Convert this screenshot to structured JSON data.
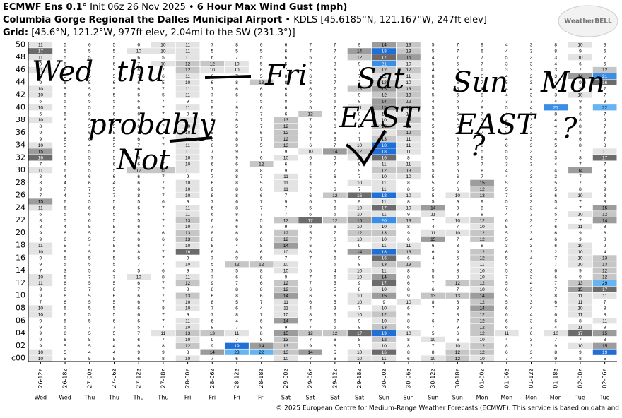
{
  "header": {
    "title": [
      "ECMWF Ens 0.1°",
      "Init 06z 26 Nov 2025 •",
      "6 Hour Max Wind Gust (mph)"
    ],
    "location": [
      "Columbia Gorge Regional the Dalles Municipal Airport",
      "• KDLS [45.6185°N, 121.167°W, 247ft elev]"
    ],
    "grid": [
      "Grid:",
      "[45.6°N, 121.2°W, 977ft elev, 2.04mi to the SW (231.3°)]"
    ],
    "logo": "WeatherBELL"
  },
  "footer": "© 2025 European Centre for Medium-Range Weather Forecasts (ECMWF). This service is based on data and",
  "chart_data": {
    "type": "heatmap",
    "x": [
      "26-12z",
      "26-18z",
      "27-00z",
      "27-06z",
      "27-12z",
      "27-18z",
      "28-00z",
      "28-06z",
      "28-12z",
      "28-18z",
      "29-00z",
      "29-06z",
      "29-12z",
      "29-18z",
      "30-00z",
      "30-06z",
      "30-12z",
      "30-18z",
      "01-00z",
      "01-06z",
      "01-12z",
      "01-18z",
      "02-00z",
      "02-06z"
    ],
    "day_labels": [
      "Wed",
      "Wed",
      "Thu",
      "Thu",
      "Thu",
      "Thu",
      "Fri",
      "Fri",
      "Fri",
      "Fri",
      "Sat",
      "Sat",
      "Sat",
      "Sat",
      "Sun",
      "Sun",
      "Sun",
      "Sun",
      "Mon",
      "Mon",
      "Mon",
      "Mon",
      "Tue",
      "Tue"
    ],
    "y": [
      "50",
      null,
      "48",
      null,
      "46",
      null,
      "44",
      null,
      "42",
      null,
      "40",
      null,
      "38",
      null,
      "36",
      null,
      "34",
      null,
      "32",
      null,
      "30",
      null,
      "28",
      null,
      "26",
      null,
      "24",
      null,
      "22",
      null,
      "20",
      null,
      "18",
      null,
      "16",
      null,
      "14",
      null,
      "12",
      null,
      "10",
      null,
      "08",
      null,
      "06",
      null,
      "04",
      null,
      "02",
      null,
      "c00"
    ],
    "color_scale": [
      {
        "min": 10,
        "color": "#e3e3e3"
      },
      {
        "min": 12,
        "color": "#c6c6c6"
      },
      {
        "min": 14,
        "color": "#9c9c9c"
      },
      {
        "min": 16,
        "color": "#6b6b6b"
      },
      {
        "min": 18,
        "color": "#1f6fd6"
      },
      {
        "min": 20,
        "color": "#3a8ee6"
      },
      {
        "min": 22,
        "color": "#66b4f2"
      }
    ],
    "values": [
      [
        11,
        5,
        6,
        5,
        6,
        10,
        11,
        7,
        8,
        6,
        6,
        7,
        7,
        9,
        14,
        13,
        5,
        7,
        9,
        4,
        3,
        8,
        10,
        3
      ],
      [
        17,
        5,
        5,
        5,
        10,
        10,
        11,
        5,
        5,
        5,
        6,
        7,
        7,
        14,
        18,
        13,
        5,
        7,
        6,
        4,
        3,
        8,
        9,
        6
      ],
      [
        11,
        5,
        5,
        5,
        6,
        5,
        11,
        6,
        7,
        5,
        6,
        5,
        7,
        12,
        17,
        15,
        4,
        7,
        7,
        5,
        3,
        3,
        10,
        7
      ],
      [
        9,
        6,
        5,
        6,
        7,
        10,
        12,
        12,
        10,
        5,
        5,
        7,
        8,
        9,
        21,
        10,
        5,
        5,
        7,
        3,
        3,
        4,
        6,
        6
      ],
      [
        11,
        6,
        5,
        5,
        6,
        7,
        12,
        10,
        10,
        6,
        7,
        5,
        6,
        7,
        12,
        12,
        4,
        6,
        9,
        3,
        3,
        3,
        7,
        12
      ],
      [
        9,
        5,
        6,
        5,
        7,
        6,
        11,
        6,
        7,
        5,
        8,
        6,
        6,
        7,
        11,
        11,
        8,
        5,
        5,
        4,
        3,
        3,
        14,
        21
      ],
      [
        9,
        6,
        5,
        6,
        6,
        5,
        10,
        6,
        8,
        13,
        8,
        5,
        7,
        7,
        12,
        10,
        5,
        6,
        7,
        5,
        3,
        4,
        9,
        16
      ],
      [
        10,
        5,
        5,
        5,
        6,
        7,
        11,
        7,
        6,
        6,
        6,
        6,
        7,
        13,
        15,
        13,
        5,
        5,
        6,
        4,
        4,
        3,
        9,
        7
      ],
      [
        10,
        5,
        6,
        5,
        6,
        5,
        11,
        7,
        6,
        6,
        6,
        6,
        5,
        9,
        12,
        13,
        5,
        6,
        8,
        4,
        3,
        3,
        10,
        7
      ],
      [
        6,
        5,
        5,
        5,
        6,
        7,
        9,
        5,
        7,
        5,
        8,
        5,
        6,
        8,
        14,
        12,
        4,
        6,
        7,
        3,
        3,
        4,
        9,
        8
      ],
      [
        10,
        5,
        5,
        5,
        6,
        7,
        11,
        9,
        9,
        6,
        6,
        5,
        7,
        11,
        15,
        13,
        5,
        6,
        8,
        5,
        4,
        21,
        9,
        22
      ],
      [
        6,
        6,
        5,
        6,
        6,
        7,
        9,
        6,
        7,
        7,
        6,
        12,
        6,
        8,
        10,
        11,
        5,
        6,
        7,
        4,
        3,
        8,
        6,
        7
      ],
      [
        10,
        6,
        5,
        5,
        6,
        7,
        11,
        6,
        6,
        7,
        13,
        7,
        6,
        8,
        10,
        13,
        5,
        6,
        7,
        4,
        3,
        4,
        8,
        9
      ],
      [
        8,
        6,
        5,
        5,
        6,
        7,
        10,
        7,
        5,
        7,
        12,
        6,
        6,
        8,
        13,
        11,
        5,
        5,
        8,
        3,
        3,
        4,
        8,
        7
      ],
      [
        9,
        5,
        6,
        5,
        6,
        7,
        10,
        5,
        6,
        6,
        12,
        6,
        5,
        7,
        10,
        12,
        5,
        6,
        7,
        5,
        3,
        3,
        8,
        8
      ],
      [
        9,
        6,
        6,
        5,
        6,
        7,
        10,
        6,
        8,
        7,
        12,
        7,
        5,
        7,
        13,
        11,
        5,
        6,
        7,
        4,
        3,
        4,
        6,
        7
      ],
      [
        10,
        5,
        4,
        5,
        7,
        7,
        11,
        6,
        9,
        5,
        13,
        6,
        7,
        10,
        18,
        11,
        5,
        7,
        8,
        6,
        3,
        5,
        8,
        8
      ],
      [
        15,
        6,
        5,
        5,
        7,
        7,
        11,
        7,
        9,
        7,
        9,
        10,
        14,
        12,
        18,
        11,
        8,
        6,
        5,
        5,
        3,
        4,
        7,
        11
      ],
      [
        16,
        6,
        5,
        5,
        6,
        7,
        10,
        7,
        9,
        6,
        10,
        6,
        5,
        10,
        16,
        8,
        5,
        6,
        8,
        5,
        3,
        3,
        8,
        17
      ],
      [
        7,
        4,
        5,
        6,
        6,
        7,
        10,
        6,
        6,
        12,
        6,
        4,
        7,
        9,
        11,
        11,
        5,
        6,
        7,
        3,
        3,
        4,
        7,
        7
      ],
      [
        11,
        6,
        5,
        5,
        12,
        12,
        11,
        6,
        8,
        8,
        9,
        7,
        7,
        9,
        12,
        13,
        5,
        6,
        8,
        4,
        3,
        4,
        14,
        8
      ],
      [
        8,
        4,
        6,
        6,
        6,
        7,
        9,
        7,
        8,
        7,
        11,
        5,
        6,
        7,
        10,
        10,
        5,
        6,
        7,
        4,
        3,
        3,
        7,
        8
      ],
      [
        8,
        4,
        6,
        4,
        6,
        7,
        10,
        6,
        8,
        5,
        11,
        5,
        5,
        10,
        11,
        8,
        5,
        7,
        15,
        5,
        3,
        5,
        7,
        8
      ],
      [
        9,
        7,
        7,
        5,
        6,
        7,
        10,
        9,
        8,
        6,
        11,
        7,
        6,
        7,
        11,
        8,
        5,
        6,
        12,
        5,
        3,
        5,
        8,
        9
      ],
      [
        7,
        4,
        7,
        7,
        8,
        7,
        10,
        8,
        8,
        6,
        7,
        6,
        12,
        16,
        18,
        10,
        5,
        10,
        13,
        7,
        3,
        6,
        10,
        8
      ],
      [
        15,
        6,
        5,
        5,
        5,
        6,
        9,
        7,
        6,
        7,
        9,
        6,
        5,
        9,
        11,
        8,
        5,
        9,
        9,
        5,
        3,
        5,
        7,
        8
      ],
      [
        11,
        6,
        6,
        6,
        6,
        7,
        11,
        6,
        8,
        7,
        7,
        5,
        6,
        10,
        17,
        10,
        14,
        3,
        8,
        7,
        3,
        4,
        7,
        15
      ],
      [
        6,
        5,
        6,
        5,
        6,
        7,
        11,
        6,
        8,
        7,
        7,
        6,
        6,
        10,
        11,
        9,
        11,
        3,
        8,
        4,
        3,
        5,
        10,
        12
      ],
      [
        8,
        5,
        6,
        5,
        5,
        7,
        13,
        6,
        9,
        5,
        12,
        17,
        12,
        15,
        20,
        13,
        7,
        10,
        12,
        6,
        3,
        7,
        7,
        14
      ],
      [
        8,
        4,
        5,
        5,
        6,
        7,
        10,
        7,
        6,
        8,
        9,
        9,
        6,
        10,
        10,
        8,
        4,
        7,
        10,
        5,
        4,
        6,
        11,
        8
      ],
      [
        9,
        6,
        5,
        5,
        6,
        6,
        13,
        8,
        6,
        8,
        12,
        5,
        7,
        12,
        13,
        9,
        11,
        10,
        12,
        5,
        3,
        6,
        9,
        8
      ],
      [
        9,
        6,
        5,
        5,
        6,
        6,
        13,
        8,
        6,
        8,
        12,
        7,
        6,
        10,
        10,
        6,
        15,
        7,
        12,
        5,
        4,
        6,
        9,
        8
      ],
      [
        11,
        5,
        4,
        5,
        6,
        7,
        10,
        8,
        4,
        8,
        14,
        6,
        7,
        9,
        11,
        11,
        6,
        3,
        8,
        3,
        3,
        6,
        10,
        9
      ],
      [
        10,
        5,
        5,
        5,
        8,
        7,
        16,
        8,
        8,
        6,
        10,
        6,
        5,
        14,
        18,
        13,
        6,
        9,
        12,
        6,
        3,
        2,
        10,
        4
      ],
      [
        9,
        5,
        5,
        5,
        6,
        7,
        9,
        7,
        9,
        6,
        7,
        7,
        6,
        9,
        16,
        6,
        4,
        5,
        12,
        5,
        4,
        7,
        10,
        13
      ],
      [
        9,
        5,
        5,
        5,
        7,
        7,
        10,
        5,
        12,
        12,
        10,
        7,
        6,
        8,
        13,
        13,
        7,
        9,
        11,
        5,
        4,
        7,
        10,
        13
      ],
      [
        7,
        3,
        5,
        4,
        5,
        6,
        9,
        7,
        5,
        8,
        10,
        5,
        4,
        10,
        11,
        8,
        5,
        8,
        10,
        5,
        3,
        6,
        9,
        12
      ],
      [
        10,
        5,
        7,
        7,
        10,
        8,
        11,
        7,
        6,
        8,
        9,
        7,
        6,
        10,
        14,
        8,
        5,
        8,
        10,
        7,
        3,
        6,
        9,
        12
      ],
      [
        11,
        6,
        5,
        5,
        6,
        7,
        12,
        9,
        7,
        6,
        12,
        7,
        5,
        9,
        17,
        6,
        7,
        12,
        12,
        5,
        4,
        7,
        13,
        29
      ],
      [
        9,
        6,
        7,
        6,
        7,
        7,
        8,
        8,
        8,
        8,
        12,
        6,
        5,
        8,
        10,
        8,
        6,
        7,
        10,
        6,
        3,
        7,
        15,
        17
      ],
      [
        9,
        6,
        5,
        6,
        6,
        7,
        13,
        6,
        8,
        6,
        14,
        6,
        6,
        10,
        15,
        9,
        13,
        13,
        14,
        5,
        3,
        8,
        11,
        11
      ],
      [
        7,
        6,
        5,
        5,
        6,
        7,
        10,
        8,
        5,
        7,
        11,
        6,
        5,
        10,
        9,
        10,
        8,
        6,
        12,
        5,
        3,
        6,
        11,
        7
      ],
      [
        10,
        6,
        5,
        5,
        6,
        8,
        10,
        7,
        6,
        4,
        11,
        4,
        3,
        7,
        10,
        6,
        7,
        8,
        14,
        6,
        4,
        7,
        10,
        8
      ],
      [
        10,
        6,
        5,
        5,
        6,
        7,
        9,
        7,
        8,
        7,
        10,
        8,
        6,
        10,
        12,
        9,
        7,
        8,
        12,
        6,
        4,
        6,
        11,
        8
      ],
      [
        9,
        6,
        5,
        6,
        6,
        7,
        11,
        6,
        4,
        6,
        14,
        7,
        6,
        9,
        10,
        8,
        6,
        7,
        12,
        6,
        3,
        6,
        8,
        11
      ],
      [
        9,
        5,
        7,
        7,
        5,
        7,
        10,
        8,
        7,
        8,
        9,
        7,
        5,
        8,
        13,
        6,
        7,
        9,
        12,
        6,
        3,
        4,
        11,
        8
      ],
      [
        9,
        6,
        5,
        5,
        7,
        11,
        13,
        13,
        11,
        8,
        15,
        12,
        12,
        17,
        19,
        10,
        5,
        6,
        12,
        11,
        6,
        10,
        17,
        15
      ],
      [
        9,
        6,
        5,
        5,
        6,
        7,
        10,
        9,
        7,
        8,
        13,
        7,
        6,
        8,
        12,
        8,
        10,
        6,
        10,
        4,
        3,
        7,
        7,
        8
      ],
      [
        9,
        5,
        5,
        4,
        6,
        8,
        12,
        9,
        19,
        14,
        13,
        9,
        6,
        7,
        10,
        8,
        7,
        10,
        12,
        8,
        3,
        9,
        10,
        15
      ],
      [
        10,
        5,
        4,
        4,
        9,
        9,
        8,
        14,
        28,
        22,
        13,
        14,
        5,
        10,
        16,
        8,
        8,
        12,
        12,
        6,
        3,
        8,
        9,
        19
      ],
      [
        10,
        5,
        5,
        5,
        6,
        8,
        10,
        7,
        6,
        4,
        10,
        7,
        6,
        10,
        11,
        6,
        10,
        12,
        10,
        7,
        4,
        9,
        8,
        5
      ]
    ],
    "annotations": [
      "Wed",
      "thu",
      "Fri",
      "Sat",
      "Sun",
      "Mon",
      "probably",
      "Not",
      "EAST",
      "EAST",
      "?",
      "?"
    ]
  }
}
